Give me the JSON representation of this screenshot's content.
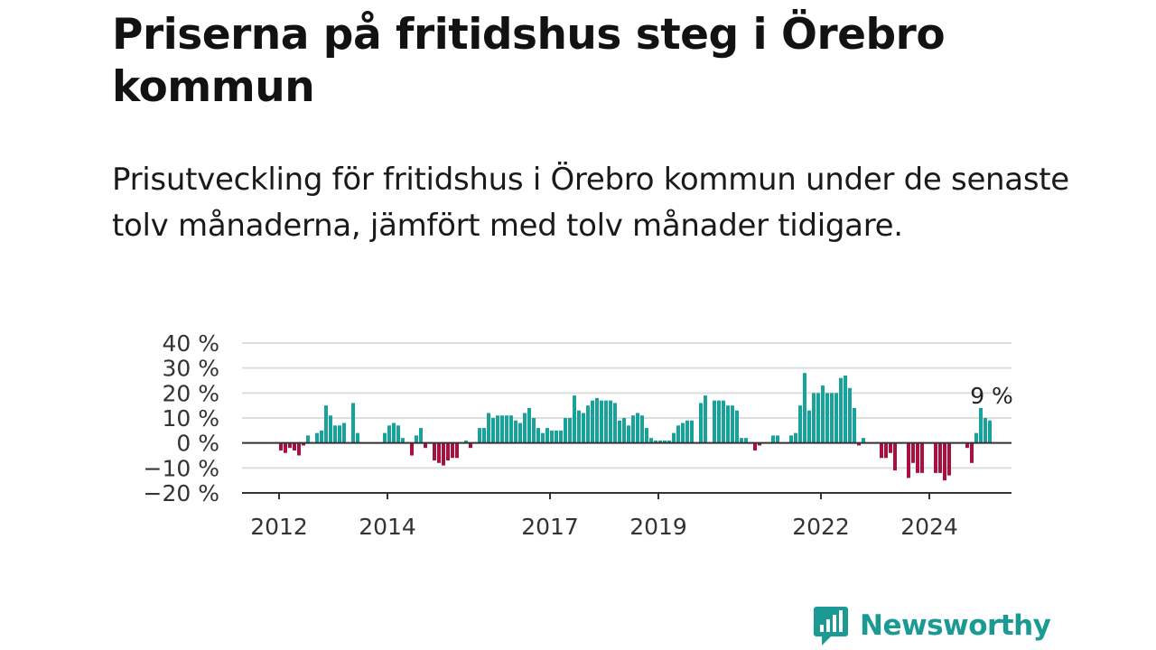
{
  "title": "Priserna på fritidshus steg i Örebro kommun",
  "subtitle": "Prisutveckling för fritidshus i Örebro kommun under de senaste tolv månaderna, jämfört med tolv månader tidigare.",
  "logo_text": "Newsworthy",
  "colors": {
    "positive": "#17a39b",
    "negative": "#a8113f",
    "grid": "#dddddd",
    "axis": "#333333"
  },
  "chart_data": {
    "type": "bar",
    "title": "Priserna på fritidshus steg i Örebro kommun",
    "xlabel": "",
    "ylabel": "",
    "ylim": [
      -20,
      40
    ],
    "y_ticks": [
      40,
      30,
      20,
      10,
      0,
      -10,
      -20
    ],
    "y_tick_labels": [
      "40 %",
      "30 %",
      "20 %",
      "10 %",
      "0 %",
      "−10 %",
      "−20 %"
    ],
    "x_tick_labels": [
      "2012",
      "2014",
      "2017",
      "2019",
      "2022",
      "2024"
    ],
    "x_tick_positions": [
      2012,
      2014,
      2017,
      2019,
      2022,
      2024
    ],
    "start": "2012-01",
    "frequency": "monthly",
    "end_label": "9 %",
    "values": [
      -3,
      -4,
      -2,
      -3,
      -5,
      -1,
      3,
      0,
      4,
      5,
      15,
      11,
      7,
      7,
      8,
      0,
      16,
      4,
      0,
      0,
      0,
      0,
      0,
      4,
      7,
      8,
      7,
      2,
      0,
      -5,
      3,
      6,
      -2,
      0,
      -7,
      -8,
      -9,
      -7,
      -6,
      -6,
      0,
      1,
      -2,
      0,
      6,
      6,
      12,
      10,
      11,
      11,
      11,
      11,
      9,
      8,
      12,
      14,
      10,
      6,
      4,
      6,
      5,
      5,
      5,
      10,
      10,
      19,
      13,
      12,
      15,
      17,
      18,
      17,
      17,
      17,
      16,
      9,
      10,
      7,
      11,
      12,
      11,
      6,
      2,
      1,
      1,
      1,
      1,
      4,
      7,
      8,
      9,
      9,
      0,
      16,
      19,
      0,
      17,
      17,
      17,
      15,
      15,
      13,
      2,
      2,
      0,
      -3,
      -1,
      0,
      0,
      3,
      3,
      0,
      0,
      3,
      4,
      15,
      28,
      13,
      20,
      20,
      23,
      20,
      20,
      20,
      26,
      27,
      22,
      14,
      -1,
      2,
      0,
      0,
      0,
      -6,
      -6,
      -4,
      -11,
      0,
      0,
      -14,
      -8,
      -12,
      -12,
      0,
      0,
      -12,
      -12,
      -15,
      -13,
      0,
      0,
      0,
      -2,
      -8,
      4,
      14,
      10,
      9
    ]
  }
}
